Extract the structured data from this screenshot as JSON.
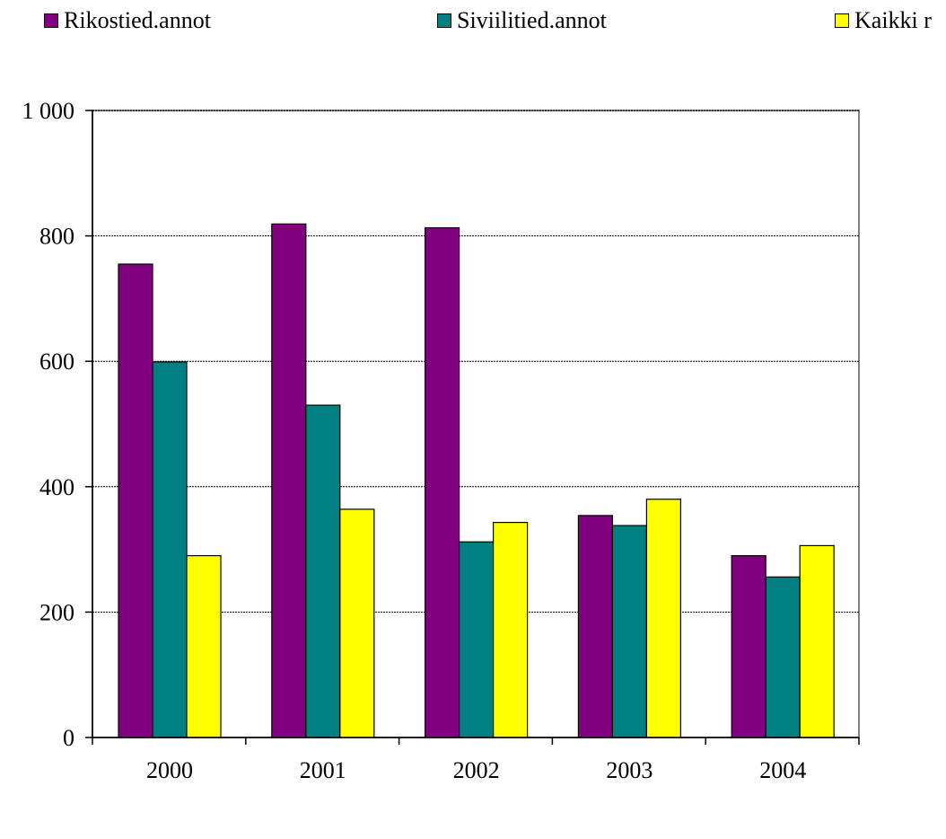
{
  "chart_data": {
    "type": "bar",
    "categories": [
      "2000",
      "2001",
      "2002",
      "2003",
      "2004"
    ],
    "series": [
      {
        "name": "Rikostied.annot",
        "color": "#800080",
        "values": [
          755,
          819,
          813,
          354,
          290
        ]
      },
      {
        "name": "Siviilitied.annot",
        "color": "#008080",
        "values": [
          599,
          530,
          312,
          338,
          256
        ]
      },
      {
        "name": "Kaikki r",
        "color": "#ffff00",
        "values": [
          290,
          364,
          343,
          380,
          306
        ]
      }
    ],
    "ylim": [
      0,
      1000
    ],
    "yticks": [
      0,
      200,
      400,
      600,
      800,
      1000
    ],
    "ytick_labels": [
      "0",
      "200",
      "400",
      "600",
      "800",
      "1 000"
    ],
    "grid": true,
    "legend_position": "top"
  }
}
